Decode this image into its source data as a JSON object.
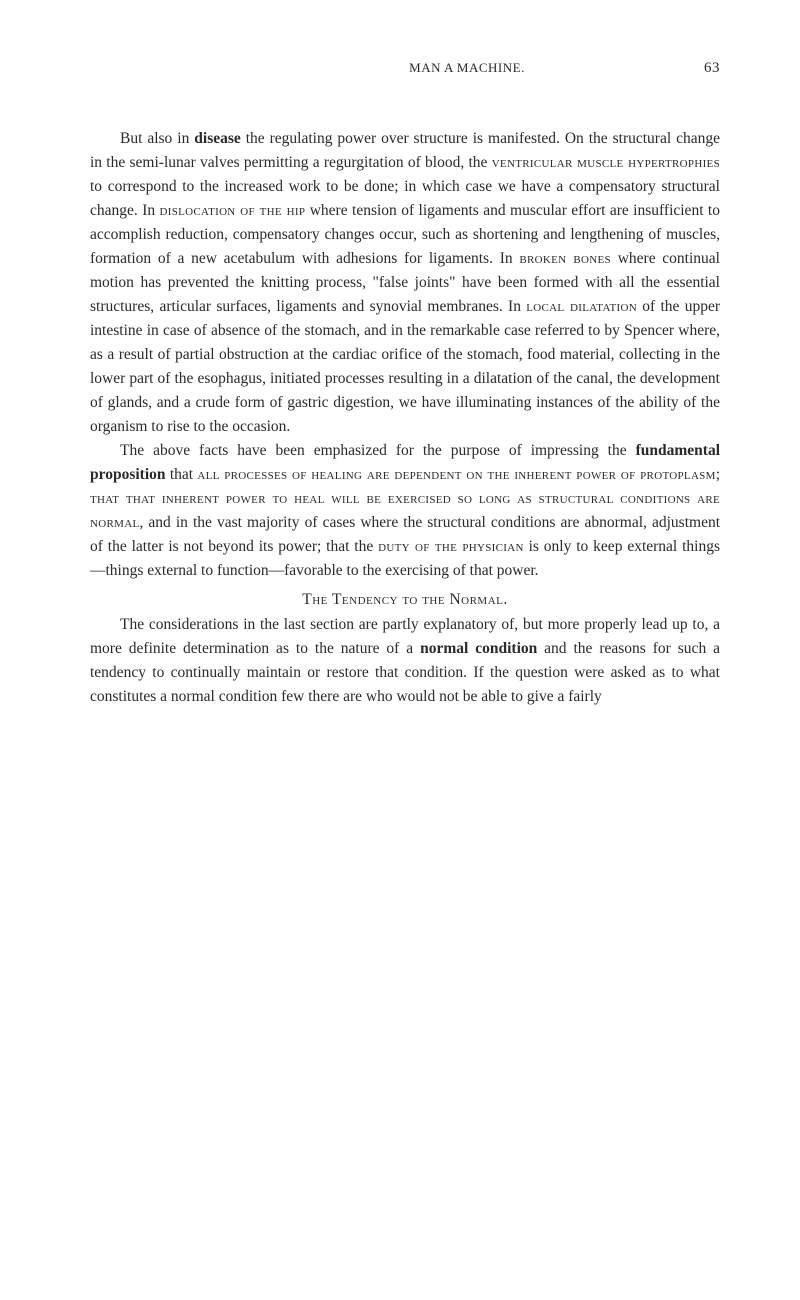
{
  "header": {
    "title": "MAN A MACHINE.",
    "pageNumber": "63"
  },
  "paragraphs": {
    "p1_part1": "But also in ",
    "p1_bold1": "disease",
    "p1_part2": " the regulating power over structure is manifested. On the structural change in the semi-lunar valves permitting a regurgitation of blood, the ",
    "p1_sc1": "ventricular muscle hypertrophies",
    "p1_part3": " to correspond to the increased work to be done; in which case we have a compensatory structural change. In ",
    "p1_sc2": "dislocation of the hip",
    "p1_part4": " where tension of ligaments and muscular effort are insufficient to accomplish reduction, compensatory changes occur, such as shortening and lengthening of muscles, formation of a new acetabulum with adhesions for ligaments. In ",
    "p1_sc3": "broken bones",
    "p1_part5": " where continual motion has prevented the knitting process, \"false joints\" have been formed with all the essential structures, articular surfaces, ligaments and synovial membranes. In ",
    "p1_sc4": "local dilatation",
    "p1_part6": " of the upper intestine in case of absence of the stomach, and in the remarkable case referred to by Spencer where, as a result of partial obstruction at the cardiac orifice of the stomach, food material, collecting in the lower part of the esophagus, initiated processes resulting in a dilatation of the canal, the development of glands, and a crude form of gastric digestion, we have illuminating instances of the ability of the organism to rise to the occasion.",
    "p2_part1": "The above facts have been emphasized for the purpose of impressing the ",
    "p2_bold1": "fundamental proposition",
    "p2_part2": " that ",
    "p2_sc1": "all processes of healing are dependent on the inherent power of protoplasm",
    "p2_part3": "; ",
    "p2_sc2": "that that inherent power to heal will be exercised so long as structural conditions are normal",
    "p2_part4": ", and in the vast majority of cases where the structural conditions are abnormal, adjustment of the latter is not beyond its power; that the ",
    "p2_sc3": "duty of the physician",
    "p2_part5": " is only to keep external things —things external to function—favorable to the exercising of that power.",
    "sectionHeading": "The Tendency to the Normal.",
    "p3_part1": "The considerations in the last section are partly explanatory of, but more properly lead up to, a more definite determination as to the nature of a ",
    "p3_bold1": "normal condition",
    "p3_part2": " and the reasons for such a tendency to continually maintain or restore that condition. If the question were asked as to what constitutes a normal condition few there are who would not be able to give a fairly"
  },
  "styling": {
    "bodyFontSize": 15.5,
    "lineHeight": 1.55,
    "textColor": "#2a2a2a",
    "backgroundColor": "#ffffff",
    "pageWidth": 800,
    "pageHeight": 1300,
    "textIndent": 30,
    "fontFamily": "Georgia, Times New Roman, serif"
  }
}
